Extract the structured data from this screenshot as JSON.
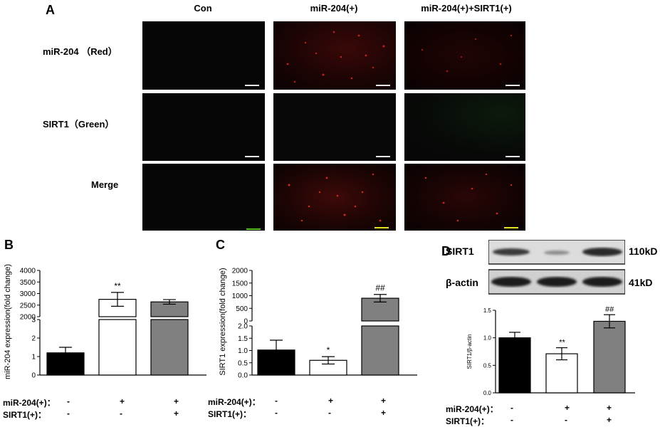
{
  "panel_a": {
    "letter": "A",
    "columns": [
      "Con",
      "miR-204(+)",
      "miR-204(+)+SIRT1(+)"
    ],
    "rows": [
      "miR-204 （Red）",
      "SIRT1（Green）",
      "Merge"
    ]
  },
  "panel_b_letter": "B",
  "panel_c_letter": "C",
  "panel_d_letter": "D",
  "western_blot": {
    "bands": [
      {
        "label": "SIRT1",
        "size": "110kD"
      },
      {
        "label": "β-actin",
        "size": "41kD"
      }
    ]
  },
  "conditions": {
    "mir204_label": "miR-204(+)：",
    "sirt1_label": "SIRT1(+)：",
    "mir204_signs": [
      "-",
      "+",
      "+"
    ],
    "sirt1_signs": [
      "-",
      "-",
      "+"
    ]
  },
  "colors": {
    "group1": "#000000",
    "group2": "#ffffff",
    "group3": "#808080"
  },
  "chart_data": [
    {
      "panel": "B",
      "type": "bar",
      "ylabel": "miR-204 expression(fold change)",
      "axis_break": true,
      "lower_ylim": [
        0,
        3
      ],
      "lower_ticks": [
        "0",
        "1",
        "2",
        "3"
      ],
      "upper_ylim": [
        2000,
        4000
      ],
      "upper_ticks": [
        "2000",
        "2500",
        "3000",
        "3500",
        "4000"
      ],
      "values": [
        1.2,
        2750,
        2640
      ],
      "errors": [
        0.3,
        300,
        100
      ],
      "annotations": [
        "",
        "**",
        ""
      ]
    },
    {
      "panel": "C",
      "type": "bar",
      "ylabel": "SIRT1 expression(fold change)",
      "axis_break": true,
      "lower_ylim": [
        0,
        2
      ],
      "lower_ticks": [
        "0.0",
        "0.5",
        "1.0",
        "1.5",
        "2.0"
      ],
      "upper_ylim": [
        0,
        2000
      ],
      "upper_ticks": [
        "0",
        "500",
        "1000",
        "1500",
        "2000"
      ],
      "values": [
        1.02,
        0.6,
        900
      ],
      "errors": [
        0.4,
        0.15,
        150
      ],
      "annotations": [
        "",
        "*",
        "##"
      ]
    },
    {
      "panel": "D",
      "type": "bar",
      "ylabel": "SIRT1/β-actin",
      "ylim": [
        0,
        1.5
      ],
      "ticks": [
        "0.0",
        "0.5",
        "1.0",
        "1.5"
      ],
      "values": [
        1.0,
        0.71,
        1.3
      ],
      "errors": [
        0.1,
        0.11,
        0.12
      ],
      "annotations": [
        "",
        "**",
        "##"
      ]
    }
  ]
}
